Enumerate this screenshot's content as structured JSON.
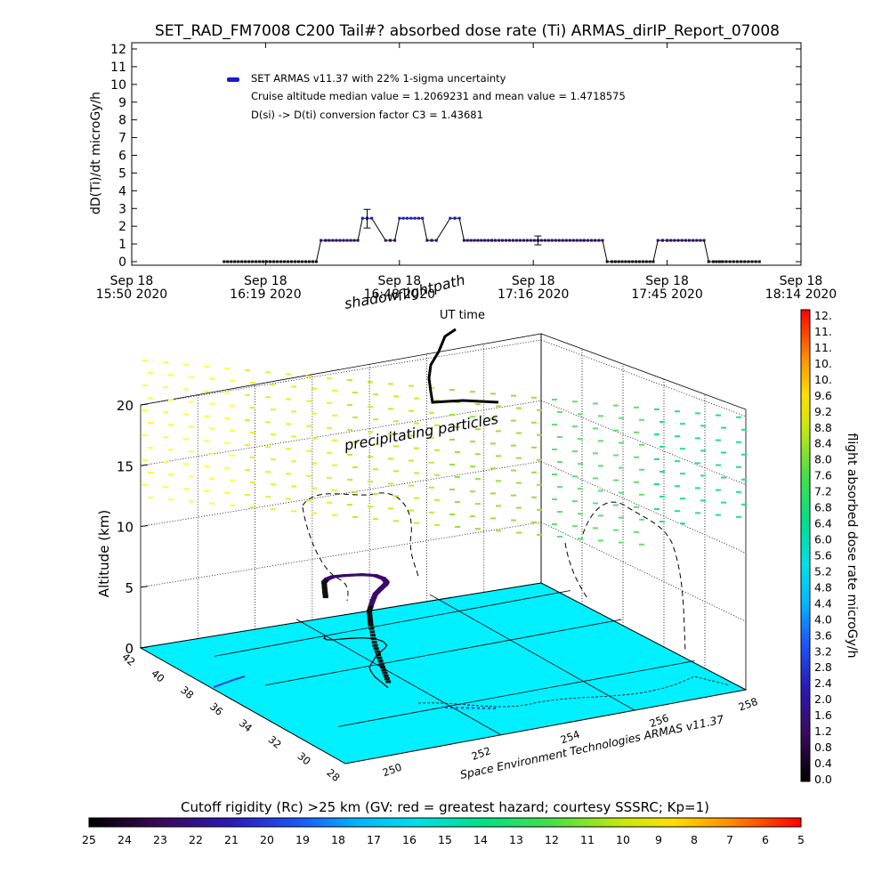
{
  "title": "SET_RAD_FM7008  C200 Tail#? absorbed dose rate (Ti) ARMAS_dirIP_Report_07008",
  "top_chart": {
    "ylabel": "dD(Ti)/dt microGy/h",
    "y_ticks": [
      "0",
      "1",
      "2",
      "3",
      "4",
      "5",
      "6",
      "7",
      "8",
      "9",
      "10",
      "11",
      "12"
    ],
    "x_ticks": [
      {
        "line1": "Sep 18",
        "line2": "15:50 2020"
      },
      {
        "line1": "Sep 18",
        "line2": "16:19 2020"
      },
      {
        "line1": "Sep 18",
        "line2": "16:48 2020"
      },
      {
        "line1": "Sep 18",
        "line2": "17:16 2020"
      },
      {
        "line1": "Sep 18",
        "line2": "17:45 2020"
      },
      {
        "line1": "Sep 18",
        "line2": "18:14 2020"
      }
    ],
    "legend_series": "SET ARMAS v11.37 with 22% 1-sigma uncertainty",
    "note_cruise": "Cruise altitude median value = 1.2069231 and mean value = 1.4718575",
    "note_conversion": "D(si) -> D(ti) conversion factor C3 = 1.43681"
  },
  "chart_data": [
    {
      "type": "line",
      "title": "SET_RAD_FM7008  C200 Tail#? absorbed dose rate (Ti) ARMAS_dirIP_Report_07008",
      "xlabel": "",
      "ylabel": "dD(Ti)/dt microGy/h",
      "x_unit": "minutes after Sep 18 15:50 2020",
      "xlim": [
        0,
        145
      ],
      "ylim": [
        0,
        12
      ],
      "series": [
        {
          "name": "SET ARMAS v11.37 with 22% 1-sigma uncertainty",
          "x": [
            20,
            30,
            40,
            41,
            42,
            49,
            50,
            51,
            52,
            55,
            56,
            57,
            58,
            63,
            64,
            65,
            66,
            69,
            70,
            71,
            72,
            78,
            88,
            98,
            102,
            103,
            104,
            113,
            114,
            115,
            116,
            124,
            125,
            126,
            128,
            132,
            136
          ],
          "y": [
            0,
            0,
            0,
            1.2,
            1.2,
            1.2,
            2.45,
            2.45,
            2.45,
            1.2,
            1.2,
            1.2,
            2.45,
            2.45,
            1.2,
            1.2,
            1.2,
            2.45,
            2.45,
            2.45,
            1.2,
            1.2,
            1.2,
            1.2,
            1.2,
            0,
            0,
            0,
            1.2,
            1.2,
            1.2,
            1.2,
            0,
            0,
            0,
            0,
            0
          ]
        }
      ],
      "error_bars": [
        {
          "x": 51,
          "y": 2.45,
          "low": 1.9,
          "high": 2.95
        },
        {
          "x": 88,
          "y": 1.2,
          "low": 0.95,
          "high": 1.45
        }
      ],
      "marker_color": "#2a0a6a",
      "highlight_color": "#1a1acc"
    },
    {
      "type": "scatter",
      "title": "",
      "xlabel": "",
      "ylabel": "Altitude (km)",
      "z_ticks": [
        "0",
        "5",
        "10",
        "15",
        "20"
      ],
      "lat_ticks": [
        "28",
        "30",
        "32",
        "34",
        "36",
        "38",
        "40",
        "42"
      ],
      "lon_ticks": [
        "250",
        "252",
        "254",
        "256",
        "258"
      ],
      "flight_path": {
        "lon": [
          252.0,
          252.05,
          252.1,
          252.2,
          252.3,
          252.5,
          252.7,
          252.95,
          253.15,
          253.25,
          253.3,
          253.25,
          253.05,
          252.75,
          252.5,
          252.4,
          252.4,
          252.45,
          252.5
        ],
        "lat": [
          34.2,
          34.8,
          35.4,
          36.0,
          36.4,
          36.8,
          37.2,
          37.6,
          37.9,
          38.1,
          38.5,
          38.9,
          39.2,
          39.4,
          39.5,
          39.6,
          39.8,
          39.9,
          40.0
        ],
        "alt": [
          0.5,
          1.5,
          2.6,
          3.8,
          4.6,
          5.0,
          5.2,
          5.2,
          5.2,
          5.2,
          5.2,
          5.2,
          5.2,
          5.2,
          5.2,
          5.0,
          4.6,
          3.8,
          3.2
        ]
      },
      "cell_color": "#00f0ff"
    }
  ],
  "plot3d": {
    "ylabel": "Altitude (km)",
    "annotation_shadow": "shadow",
    "annotation_flightpath": "flightpath",
    "annotation_ut": "UT time",
    "annotation_particles": "precipitating particles",
    "credit": "Space Environment Technologies ARMAS v11.37",
    "legend_placement": "right"
  },
  "right_colorbar": {
    "label": "flight absorbed dose rate microGy/h",
    "ticks": [
      "12.",
      "11.",
      "11.",
      "10.",
      "10.",
      "9.6",
      "9.2",
      "8.8",
      "8.4",
      "8.0",
      "7.6",
      "7.2",
      "6.8",
      "6.4",
      "6.0",
      "5.6",
      "5.2",
      "4.8",
      "4.4",
      "4.0",
      "3.6",
      "3.2",
      "2.8",
      "2.4",
      "2.0",
      "1.6",
      "1.2",
      "0.8",
      "0.4",
      "0.0"
    ]
  },
  "bottom_colorbar": {
    "label": "Cutoff rigidity (Rc) >25 km (GV: red = greatest hazard; courtesy SSSRC; Kp=1)",
    "ticks": [
      "25",
      "24",
      "23",
      "22",
      "21",
      "20",
      "19",
      "18",
      "17",
      "16",
      "15",
      "14",
      "13",
      "12",
      "11",
      "10",
      "9",
      "8",
      "7",
      "6",
      "5"
    ]
  }
}
